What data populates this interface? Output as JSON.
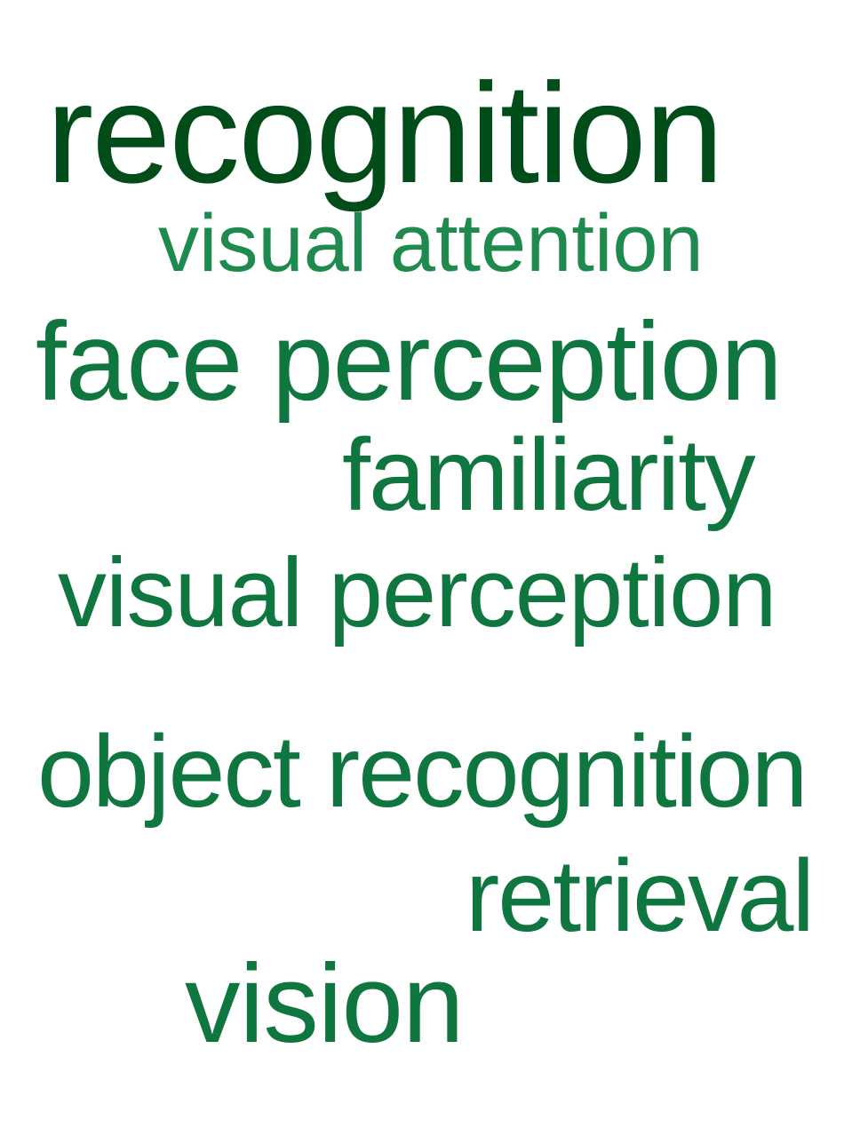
{
  "words": [
    {
      "text": "recognition",
      "color": "#014d1a"
    },
    {
      "text": "visual attention",
      "color": "#1e8a4d"
    },
    {
      "text": "face perception",
      "color": "#10763f"
    },
    {
      "text": "familiarity",
      "color": "#10763f"
    },
    {
      "text": "visual perception",
      "color": "#10763f"
    },
    {
      "text": "object recognition",
      "color": "#10763f"
    },
    {
      "text": "retrieval",
      "color": "#10763f"
    },
    {
      "text": "vision",
      "color": "#10763f"
    }
  ]
}
